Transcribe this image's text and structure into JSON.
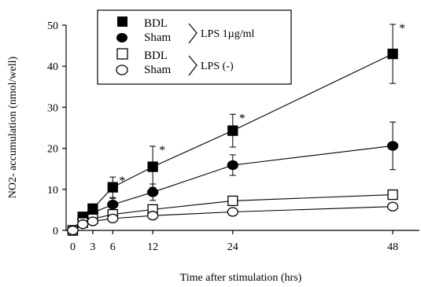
{
  "chart_data": {
    "type": "line",
    "xlabel": "Time after stimulation (hrs)",
    "ylabel": "NO2- accumulation (nmol/well)",
    "xlim": [
      -1,
      52
    ],
    "ylim": [
      0,
      50
    ],
    "xticks": [
      0,
      3,
      6,
      12,
      24,
      48
    ],
    "yticks": [
      0,
      10,
      20,
      30,
      40,
      50
    ],
    "grid": false,
    "legend_position": "top-left",
    "legend": {
      "groups": [
        {
          "label": "LPS 1µg/ml",
          "entries": [
            "BDL",
            "Sham"
          ]
        },
        {
          "label": "LPS (-)",
          "entries": [
            "BDL",
            "Sham"
          ]
        }
      ]
    },
    "series": [
      {
        "name": "BDL",
        "marker": "square-filled",
        "x": [
          0,
          1.5,
          3,
          6,
          12,
          24,
          48
        ],
        "y": [
          0,
          3.3,
          5.3,
          10.5,
          15.5,
          24.3,
          43
        ],
        "err": [
          0,
          0,
          1.0,
          2.5,
          5,
          4,
          7.2
        ],
        "significant": [
          false,
          false,
          false,
          true,
          true,
          true,
          true
        ]
      },
      {
        "name": "Sham",
        "marker": "circle-filled",
        "x": [
          0,
          1.5,
          3,
          6,
          12,
          24,
          48
        ],
        "y": [
          0,
          2.7,
          4.3,
          6.3,
          9.3,
          15.9,
          20.6
        ],
        "err": [
          0,
          0,
          0.8,
          1.5,
          2,
          2.5,
          5.8
        ],
        "significant": [
          false,
          false,
          false,
          false,
          false,
          false,
          false
        ]
      },
      {
        "name": "BDL",
        "marker": "square-open",
        "x": [
          0,
          1.5,
          3,
          6,
          12,
          24,
          48
        ],
        "y": [
          0,
          1.9,
          2.8,
          3.9,
          5.1,
          7.2,
          8.7
        ],
        "err": [
          0,
          0,
          0,
          0,
          0,
          0,
          0
        ],
        "significant": [
          false,
          false,
          false,
          false,
          false,
          false,
          false
        ]
      },
      {
        "name": "Sham",
        "marker": "circle-open",
        "x": [
          0,
          1.5,
          3,
          6,
          12,
          24,
          48
        ],
        "y": [
          0,
          1.5,
          2.2,
          2.9,
          3.6,
          4.5,
          5.8
        ],
        "err": [
          0,
          0,
          0,
          0,
          0,
          0,
          0
        ],
        "significant": [
          false,
          false,
          false,
          false,
          false,
          false,
          false
        ]
      }
    ],
    "significance_marker": "*"
  }
}
